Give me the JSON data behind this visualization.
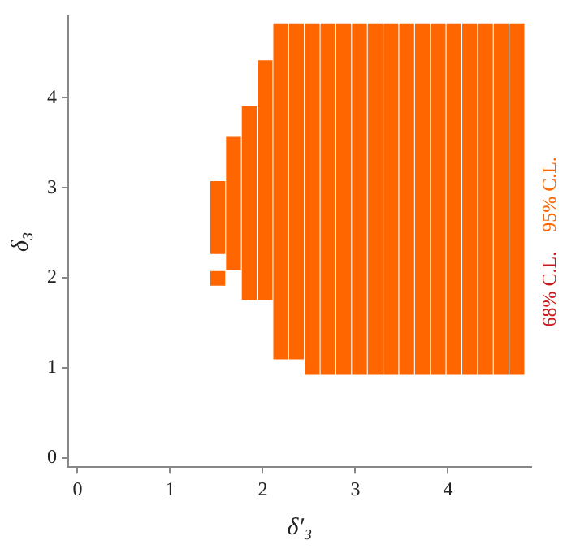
{
  "chart_data": {
    "type": "bar",
    "xlabel": "δ′₃",
    "ylabel": "δ₃",
    "x": [
      1.515,
      1.685,
      1.855,
      2.025,
      2.195,
      2.365,
      2.535,
      2.705,
      2.875,
      3.045,
      3.215,
      3.385,
      3.555,
      3.725,
      3.895,
      4.065,
      4.235,
      4.405,
      4.575,
      4.745
    ],
    "series": [
      {
        "name": "95% C.L.",
        "color": "#ff6600",
        "base": [
          2.26,
          2.08,
          1.75,
          1.75,
          1.09,
          1.09,
          0.92,
          0.92,
          0.92,
          0.92,
          0.92,
          0.92,
          0.92,
          0.92,
          0.92,
          0.92,
          0.92,
          0.92,
          0.92,
          0.92
        ],
        "values": [
          0.82,
          1.49,
          2.16,
          2.67,
          3.74,
          3.74,
          3.91,
          3.91,
          3.91,
          3.91,
          3.91,
          3.91,
          3.91,
          3.91,
          3.91,
          3.91,
          3.91,
          3.91,
          3.91,
          3.91
        ]
      },
      {
        "color": "#ff6600",
        "base": [
          1.91,
          null,
          null,
          null,
          null,
          null,
          null,
          null,
          null,
          null,
          null,
          null,
          null,
          null,
          null,
          null,
          null,
          null,
          null,
          null
        ],
        "values": [
          0.17,
          null,
          null,
          null,
          null,
          null,
          null,
          null,
          null,
          null,
          null,
          null,
          null,
          null,
          null,
          null,
          null,
          null,
          null,
          null
        ]
      }
    ],
    "xlim": [
      -0.1,
      4.9
    ],
    "ylim": [
      -0.1,
      4.9
    ],
    "xticks": [
      0,
      1,
      2,
      3,
      4
    ],
    "yticks": [
      0,
      1,
      2,
      3,
      4
    ],
    "legend": "right",
    "annotations": [
      "68% C.L."
    ]
  }
}
